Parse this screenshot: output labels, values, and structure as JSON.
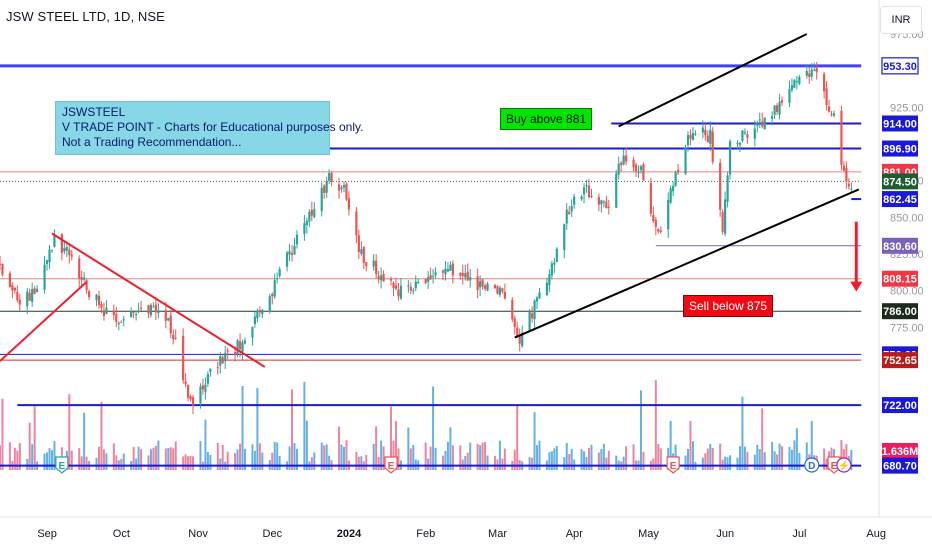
{
  "header": {
    "symbol_title": "JSW STEEL LTD, 1D, NSE",
    "currency": "INR"
  },
  "annotations": {
    "info_box": [
      "JSWSTEEL",
      "V TRADE POINT - Charts for Educational purposes only.",
      "Not a Trading Recommendation..."
    ],
    "buy_note": "Buy above 881",
    "sell_note": "Sell below 875"
  },
  "colors": {
    "up": "#26a69a",
    "down": "#ef5350",
    "level_blue": "#1a1ad6",
    "level_red": "#f08080",
    "level_dark": "#1f3d2b",
    "trendline_red": "#f01e2c",
    "trendline_black": "#000000",
    "vol_up": "#4aa3df",
    "vol_down": "#e86f8e"
  },
  "chart_data": {
    "type": "candlestick",
    "title": "JSW STEEL LTD, 1D, NSE",
    "currency": "INR",
    "ylim": [
      675,
      990
    ],
    "y_ticks": [
      975.0,
      925.0,
      875.0,
      850.0,
      825.0,
      800.0,
      775.0
    ],
    "x_tick_labels": [
      "Sep",
      "Oct",
      "Nov",
      "Dec",
      "2024",
      "Feb",
      "Mar",
      "Apr",
      "May",
      "Jun",
      "Jul",
      "Aug"
    ],
    "price_path": [
      [
        "2023-08-17",
        818
      ],
      [
        "2023-08-25",
        790
      ],
      [
        "2023-09-01",
        804
      ],
      [
        "2023-09-08",
        835
      ],
      [
        "2023-09-15",
        822
      ],
      [
        "2023-09-22",
        800
      ],
      [
        "2023-09-29",
        785
      ],
      [
        "2023-10-06",
        782
      ],
      [
        "2023-10-13",
        788
      ],
      [
        "2023-10-20",
        790
      ],
      [
        "2023-10-26",
        770
      ],
      [
        "2023-11-02",
        722
      ],
      [
        "2023-11-09",
        742
      ],
      [
        "2023-11-16",
        754
      ],
      [
        "2023-11-23",
        766
      ],
      [
        "2023-11-30",
        784
      ],
      [
        "2023-12-07",
        808
      ],
      [
        "2023-12-14",
        832
      ],
      [
        "2023-12-21",
        852
      ],
      [
        "2023-12-28",
        878
      ],
      [
        "2024-01-03",
        868
      ],
      [
        "2024-01-10",
        825
      ],
      [
        "2024-01-18",
        810
      ],
      [
        "2024-01-25",
        800
      ],
      [
        "2024-02-01",
        806
      ],
      [
        "2024-02-08",
        812
      ],
      [
        "2024-02-15",
        816
      ],
      [
        "2024-02-22",
        806
      ],
      [
        "2024-02-29",
        802
      ],
      [
        "2024-03-07",
        803
      ],
      [
        "2024-03-14",
        768
      ],
      [
        "2024-03-21",
        792
      ],
      [
        "2024-03-28",
        822
      ],
      [
        "2024-04-04",
        862
      ],
      [
        "2024-04-11",
        868
      ],
      [
        "2024-04-18",
        855
      ],
      [
        "2024-04-25",
        895
      ],
      [
        "2024-05-02",
        880
      ],
      [
        "2024-05-09",
        838
      ],
      [
        "2024-05-16",
        878
      ],
      [
        "2024-05-23",
        912
      ],
      [
        "2024-05-30",
        905
      ],
      [
        "2024-06-04",
        838
      ],
      [
        "2024-06-07",
        900
      ],
      [
        "2024-06-14",
        908
      ],
      [
        "2024-06-21",
        918
      ],
      [
        "2024-06-28",
        930
      ],
      [
        "2024-07-04",
        942
      ],
      [
        "2024-07-11",
        950
      ],
      [
        "2024-07-16",
        928
      ],
      [
        "2024-07-19",
        918
      ],
      [
        "2024-07-23",
        877
      ],
      [
        "2024-07-26",
        874.5
      ]
    ],
    "price_labels": [
      {
        "value": 953.3,
        "label": "953.30",
        "color": "#1a1ad6",
        "style": "outline"
      },
      {
        "value": 914.0,
        "label": "914.00",
        "color": "#1a1ad6",
        "style": "fill"
      },
      {
        "value": 896.9,
        "label": "896.90",
        "color": "#1a1ad6",
        "style": "fill"
      },
      {
        "value": 881.0,
        "label": "881.00",
        "color": "#f23645",
        "style": "fill"
      },
      {
        "value": 874.5,
        "label": "874.50",
        "color": "#1e5c33",
        "style": "fill"
      },
      {
        "value": 862.45,
        "label": "862.45",
        "color": "#1a1ad6",
        "style": "fill"
      },
      {
        "value": 830.6,
        "label": "830.60",
        "color": "#7a62b5",
        "style": "fill"
      },
      {
        "value": 808.15,
        "label": "808.15",
        "color": "#f23645",
        "style": "fill"
      },
      {
        "value": 786.0,
        "label": "786.00",
        "color": "#1f2a1f",
        "style": "fill"
      },
      {
        "value": 756.6,
        "label": "756.60",
        "color": "#1a1ad6",
        "style": "fill"
      },
      {
        "value": 752.65,
        "label": "752.65",
        "color": "#b71c1c",
        "style": "fill"
      },
      {
        "value": 722.0,
        "label": "722.00",
        "color": "#1a1ad6",
        "style": "fill"
      },
      {
        "value": null,
        "label": "1.636M",
        "color": "#e91e63",
        "style": "fill"
      },
      {
        "value": 680.7,
        "label": "680.70",
        "color": "#1a1ad6",
        "style": "fill"
      }
    ],
    "horizontal_levels": [
      {
        "value": 953.3,
        "from": "2023-08-17",
        "to": "2024-07-30",
        "color": "#4040ff",
        "width": 3
      },
      {
        "value": 914.0,
        "from": "2024-04-20",
        "to": "2024-07-30",
        "color": "#1a1ad6",
        "width": 2
      },
      {
        "value": 896.9,
        "from": "2023-12-27",
        "to": "2024-07-30",
        "color": "#1a1ad6",
        "width": 2
      },
      {
        "value": 881.0,
        "from": "2023-08-17",
        "to": "2024-07-30",
        "color": "#f08080",
        "width": 1
      },
      {
        "value": 874.5,
        "from": "2023-08-17",
        "to": "2024-07-30",
        "color": "#555555",
        "width": 1,
        "dash": true
      },
      {
        "value": 862.45,
        "from": "2024-07-26",
        "to": "2024-07-30",
        "color": "#1a1ad6",
        "width": 2
      },
      {
        "value": 830.6,
        "from": "2024-05-08",
        "to": "2024-07-30",
        "color": "#7a62b5",
        "width": 1
      },
      {
        "value": 808.15,
        "from": "2023-08-17",
        "to": "2024-07-30",
        "color": "#f08080",
        "width": 1
      },
      {
        "value": 786.0,
        "from": "2023-08-17",
        "to": "2024-07-30",
        "color": "#1f3d2b",
        "width": 1
      },
      {
        "value": 756.6,
        "from": "2023-08-17",
        "to": "2024-07-30",
        "color": "#1a1ad6",
        "width": 1
      },
      {
        "value": 752.65,
        "from": "2023-08-17",
        "to": "2024-07-30",
        "color": "#d32f2f",
        "width": 1
      },
      {
        "value": 722.0,
        "from": "2023-08-24",
        "to": "2024-07-30",
        "color": "#1a1ad6",
        "width": 2
      },
      {
        "value": 680.7,
        "from": "2023-08-17",
        "to": "2024-07-30",
        "color": "#1a1ad6",
        "width": 2
      }
    ],
    "trendlines": [
      {
        "from": [
          "2023-08-17",
          752
        ],
        "to": [
          "2023-09-21",
          806
        ],
        "color": "#f01e2c"
      },
      {
        "from": [
          "2023-09-07",
          839
        ],
        "to": [
          "2023-12-02",
          748
        ],
        "color": "#f01e2c"
      },
      {
        "from": [
          "2024-04-23",
          912
        ],
        "to": [
          "2024-07-08",
          975
        ],
        "color": "#000000"
      },
      {
        "from": [
          "2024-03-12",
          768
        ],
        "to": [
          "2024-07-29",
          869
        ],
        "color": "#000000"
      }
    ],
    "arrow": {
      "from": [
        "2024-07-28",
        847
      ],
      "to": [
        "2024-07-28",
        800
      ],
      "color": "#f01e2c"
    },
    "event_markers": [
      {
        "date": "2023-09-11",
        "type": "E",
        "color": "#26a69a"
      },
      {
        "date": "2024-01-22",
        "type": "E",
        "color": "#ef5350"
      },
      {
        "date": "2024-05-15",
        "type": "E",
        "color": "#ef5350"
      },
      {
        "date": "2024-07-10",
        "type": "D",
        "color": "#2962ff"
      },
      {
        "date": "2024-07-19",
        "type": "E",
        "color": "#ef5350"
      },
      {
        "date": "2024-07-23",
        "type": "⚡",
        "color": "#9c27b0"
      }
    ],
    "volume_last": "1.636M"
  }
}
